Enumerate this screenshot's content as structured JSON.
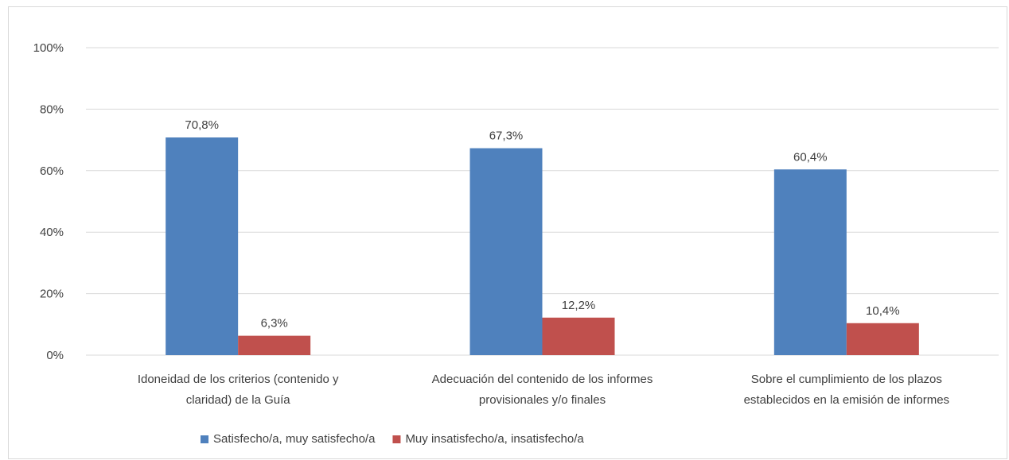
{
  "chart_data": {
    "type": "bar",
    "categories": [
      [
        "Idoneidad de los criterios (contenido y",
        "claridad) de la Guía"
      ],
      [
        "Adecuación del contenido de los informes",
        "provisionales y/o finales"
      ],
      [
        "Sobre el cumplimiento de los plazos",
        "establecidos en la emisión de informes"
      ]
    ],
    "series": [
      {
        "name": "Satisfecho/a, muy satisfecho/a",
        "values": [
          70.8,
          67.3,
          60.4
        ],
        "labels": [
          "70,8%",
          "67,3%",
          "60,4%"
        ],
        "color": "#4f81bd"
      },
      {
        "name": "Muy insatisfecho/a, insatisfecho/a",
        "values": [
          6.3,
          12.2,
          10.4
        ],
        "labels": [
          "6,3%",
          "12,2%",
          "10,4%"
        ],
        "color": "#c0504d"
      }
    ],
    "yticks": [
      0,
      20,
      40,
      60,
      80,
      100
    ],
    "ytick_labels": [
      "0%",
      "20%",
      "40%",
      "60%",
      "80%",
      "100%"
    ],
    "ylim": [
      0,
      100
    ],
    "grid": true,
    "legend_position": "bottom"
  }
}
